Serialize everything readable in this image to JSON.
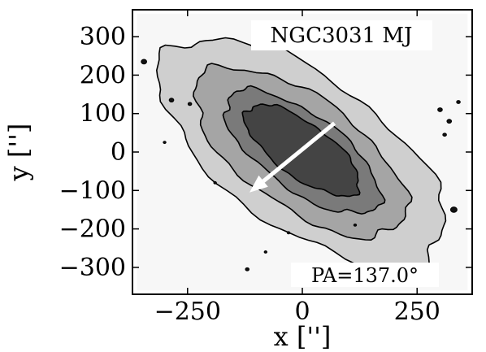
{
  "chart_data": {
    "type": "contour",
    "title": "",
    "xlabel": "x ['']",
    "ylabel": "y ['']",
    "xlim": [
      -370,
      370
    ],
    "ylim": [
      -370,
      370
    ],
    "x_ticks": [
      -250,
      0,
      250
    ],
    "y_ticks": [
      -300,
      -200,
      -100,
      0,
      100,
      200,
      300
    ],
    "x_tick_labels": [
      "−250",
      "0",
      "250"
    ],
    "y_tick_labels": [
      "−300",
      "−200",
      "−100",
      "0",
      "100",
      "200",
      "300"
    ],
    "grid": false,
    "annotations": {
      "galaxy_label": "NGC3031 MJ",
      "pa_label": "PA=137.0°"
    },
    "position_angle_deg": 137.0,
    "arrow": {
      "from": [
        70,
        75
      ],
      "to": [
        -115,
        -105
      ]
    },
    "contour_levels": [
      {
        "level": 1,
        "color": "#cfcfcf",
        "center": [
          0,
          0
        ],
        "semi_major": 390,
        "semi_minor": 185,
        "pa_deg": 137.0
      },
      {
        "level": 2,
        "color": "#a5a5a5",
        "center": [
          -5,
          0
        ],
        "semi_major": 290,
        "semi_minor": 135,
        "pa_deg": 137.0
      },
      {
        "level": 3,
        "color": "#7a7a7a",
        "center": [
          0,
          0
        ],
        "semi_major": 215,
        "semi_minor": 92,
        "pa_deg": 137.0
      },
      {
        "level": 4,
        "color": "#444444",
        "center": [
          0,
          5
        ],
        "semi_major": 160,
        "semi_minor": 65,
        "pa_deg": 137.0
      }
    ],
    "background_color": "#f7f7f7",
    "clumps": [
      {
        "x": -345,
        "y": 235,
        "r": 6
      },
      {
        "x": -285,
        "y": 135,
        "r": 5
      },
      {
        "x": -245,
        "y": 125,
        "r": 4
      },
      {
        "x": 300,
        "y": 110,
        "r": 5
      },
      {
        "x": 320,
        "y": 80,
        "r": 5
      },
      {
        "x": 340,
        "y": 130,
        "r": 4
      },
      {
        "x": 310,
        "y": 45,
        "r": 4
      },
      {
        "x": 330,
        "y": -150,
        "r": 7
      },
      {
        "x": -300,
        "y": 25,
        "r": 3
      },
      {
        "x": -190,
        "y": -80,
        "r": 3
      },
      {
        "x": -30,
        "y": -210,
        "r": 3
      },
      {
        "x": -120,
        "y": -305,
        "r": 4
      },
      {
        "x": 115,
        "y": -190,
        "r": 3
      },
      {
        "x": -80,
        "y": -260,
        "r": 3
      }
    ]
  }
}
